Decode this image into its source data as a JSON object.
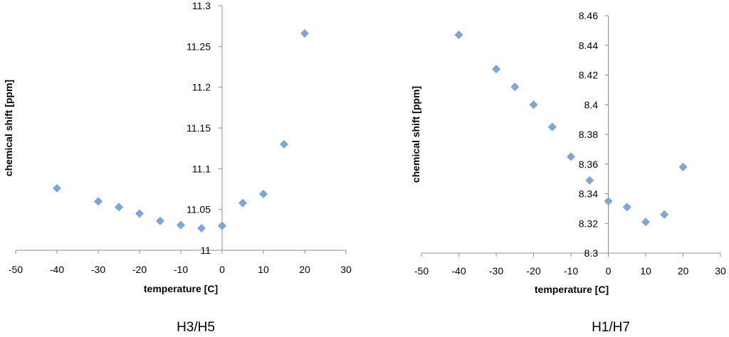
{
  "chart_data": [
    {
      "type": "scatter",
      "title": "H3/H5",
      "xlabel": "temperature [C]",
      "ylabel": "chemical shift [ppm]",
      "xlim": [
        -50,
        30
      ],
      "ylim": [
        11,
        11.3
      ],
      "xticks": [
        -50,
        -40,
        -30,
        -20,
        -10,
        0,
        10,
        20,
        30
      ],
      "yticks": [
        11,
        11.05,
        11.1,
        11.15,
        11.2,
        11.25,
        11.3
      ],
      "xtick_labels": [
        "-50",
        "-40",
        "-30",
        "-20",
        "-10",
        "0",
        "10",
        "20",
        "30"
      ],
      "ytick_labels": [
        "11",
        "11.05",
        "11.1",
        "11.15",
        "11.2",
        "11.25",
        "11.3"
      ],
      "marker_color": "#7ba7dc",
      "series": [
        {
          "name": "H3/H5",
          "x": [
            -40,
            -30,
            -25,
            -20,
            -15,
            -10,
            -5,
            0,
            5,
            10,
            15,
            20
          ],
          "y": [
            11.076,
            11.06,
            11.053,
            11.045,
            11.036,
            11.031,
            11.027,
            11.03,
            11.058,
            11.069,
            11.13,
            11.266
          ]
        }
      ]
    },
    {
      "type": "scatter",
      "title": "H1/H7",
      "xlabel": "temperature [C]",
      "ylabel": "chemical shift [ppm]",
      "xlim": [
        -50,
        30
      ],
      "ylim": [
        8.3,
        8.46
      ],
      "xticks": [
        -50,
        -40,
        -30,
        -20,
        -10,
        0,
        10,
        20,
        30
      ],
      "yticks": [
        8.3,
        8.32,
        8.34,
        8.36,
        8.38,
        8.4,
        8.42,
        8.44,
        8.46
      ],
      "xtick_labels": [
        "-50",
        "-40",
        "-30",
        "-20",
        "-10",
        "0",
        "10",
        "20",
        "30"
      ],
      "ytick_labels": [
        "8.3",
        "8.32",
        "8.34",
        "8.36",
        "8.38",
        "8.4",
        "8.42",
        "8.44",
        "8.46"
      ],
      "marker_color": "#7ba7dc",
      "series": [
        {
          "name": "H1/H7",
          "x": [
            -40,
            -30,
            -25,
            -20,
            -15,
            -10,
            -5,
            0,
            5,
            10,
            15,
            20
          ],
          "y": [
            8.447,
            8.424,
            8.412,
            8.4,
            8.385,
            8.365,
            8.349,
            8.335,
            8.331,
            8.321,
            8.326,
            8.358
          ]
        }
      ]
    }
  ]
}
